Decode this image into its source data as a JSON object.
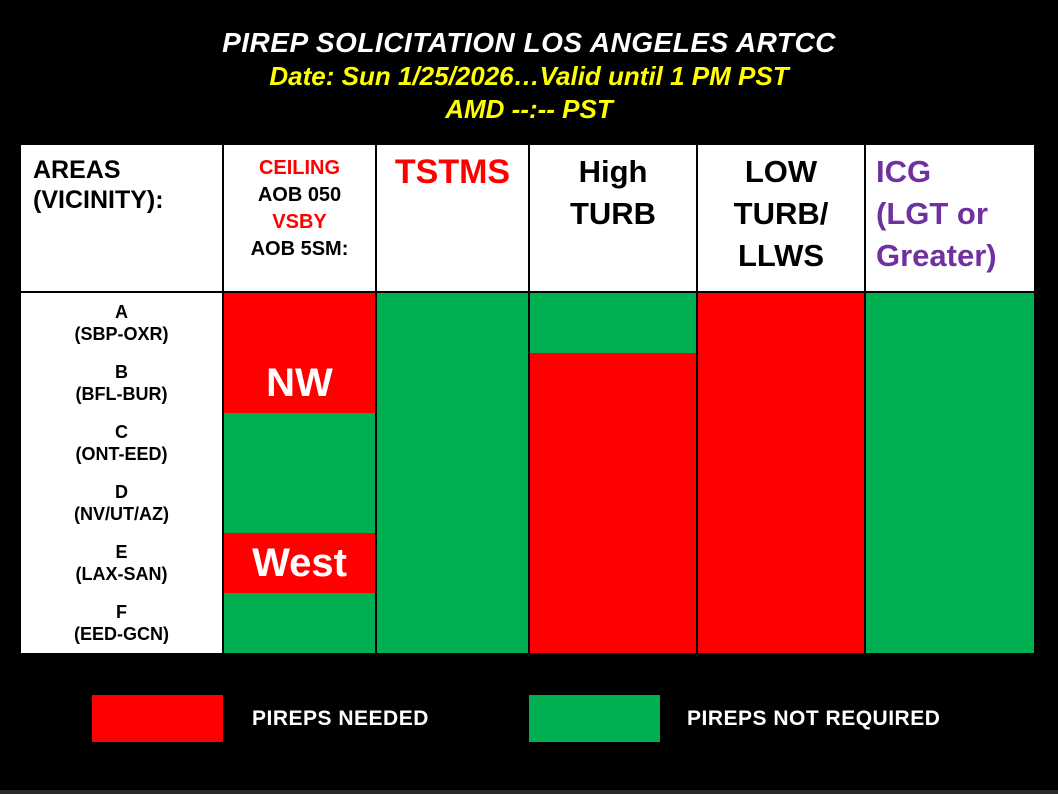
{
  "titles": {
    "line1": "PIREP SOLICITATION LOS ANGELES ARTCC",
    "line2": "Date: Sun 1/25/2026…Valid until 1 PM PST",
    "line3": "AMD --:-- PST"
  },
  "colors": {
    "background": "#000000",
    "pireps_needed": "#FF0000",
    "pireps_not_required": "#00B050",
    "accent_red": "#FF0000",
    "icg_purple": "#7030A0",
    "title_text": "#FFFFFF",
    "date_text": "#FFFF00",
    "cell_text": "#FFFFFF",
    "bottom_strip": "#2B2B2B"
  },
  "table": {
    "header": {
      "areas": [
        "AREAS",
        "(VICINITY):"
      ],
      "ceiling_lines": [
        {
          "text": "CEILING",
          "color": "#FF0000"
        },
        {
          "text": "AOB 050",
          "color": "#000000"
        },
        {
          "text": "VSBY",
          "color": "#FF0000"
        },
        {
          "text": "AOB 5SM:",
          "color": "#000000"
        }
      ],
      "tstms": "TSTMS",
      "high_turb": [
        "High",
        "TURB"
      ],
      "low_turb": [
        "LOW",
        "TURB/",
        "LLWS"
      ],
      "icg": [
        "ICG",
        "(LGT or",
        "Greater)"
      ]
    },
    "columns": [
      "ceiling",
      "tstms",
      "high_turb",
      "low_turb",
      "icg"
    ],
    "rows": [
      {
        "area": "A",
        "vicinity": "(SBP-OXR)",
        "cells": {
          "ceiling": {
            "status": "needed",
            "text": ""
          },
          "tstms": {
            "status": "not_required",
            "text": ""
          },
          "high_turb": {
            "status": "not_required",
            "text": ""
          },
          "low_turb": {
            "status": "needed",
            "text": ""
          },
          "icg": {
            "status": "not_required",
            "text": ""
          }
        }
      },
      {
        "area": "B",
        "vicinity": "(BFL-BUR)",
        "cells": {
          "ceiling": {
            "status": "needed",
            "text": "NW"
          },
          "tstms": {
            "status": "not_required",
            "text": ""
          },
          "high_turb": {
            "status": "needed",
            "text": ""
          },
          "low_turb": {
            "status": "needed",
            "text": ""
          },
          "icg": {
            "status": "not_required",
            "text": ""
          }
        }
      },
      {
        "area": "C",
        "vicinity": "(ONT-EED)",
        "cells": {
          "ceiling": {
            "status": "not_required",
            "text": ""
          },
          "tstms": {
            "status": "not_required",
            "text": ""
          },
          "high_turb": {
            "status": "needed",
            "text": ""
          },
          "low_turb": {
            "status": "needed",
            "text": ""
          },
          "icg": {
            "status": "not_required",
            "text": ""
          }
        }
      },
      {
        "area": "D",
        "vicinity": "(NV/UT/AZ)",
        "cells": {
          "ceiling": {
            "status": "not_required",
            "text": ""
          },
          "tstms": {
            "status": "not_required",
            "text": ""
          },
          "high_turb": {
            "status": "needed",
            "text": ""
          },
          "low_turb": {
            "status": "needed",
            "text": ""
          },
          "icg": {
            "status": "not_required",
            "text": ""
          }
        }
      },
      {
        "area": "E",
        "vicinity": "(LAX-SAN)",
        "cells": {
          "ceiling": {
            "status": "needed",
            "text": "West"
          },
          "tstms": {
            "status": "not_required",
            "text": ""
          },
          "high_turb": {
            "status": "needed",
            "text": ""
          },
          "low_turb": {
            "status": "needed",
            "text": ""
          },
          "icg": {
            "status": "not_required",
            "text": ""
          }
        }
      },
      {
        "area": "F",
        "vicinity": "(EED-GCN)",
        "cells": {
          "ceiling": {
            "status": "not_required",
            "text": ""
          },
          "tstms": {
            "status": "not_required",
            "text": ""
          },
          "high_turb": {
            "status": "needed",
            "text": ""
          },
          "low_turb": {
            "status": "needed",
            "text": ""
          },
          "icg": {
            "status": "not_required",
            "text": ""
          }
        }
      }
    ]
  },
  "legend": {
    "needed_label": "PIREPS NEEDED",
    "not_required_label": "PIREPS NOT REQUIRED"
  }
}
